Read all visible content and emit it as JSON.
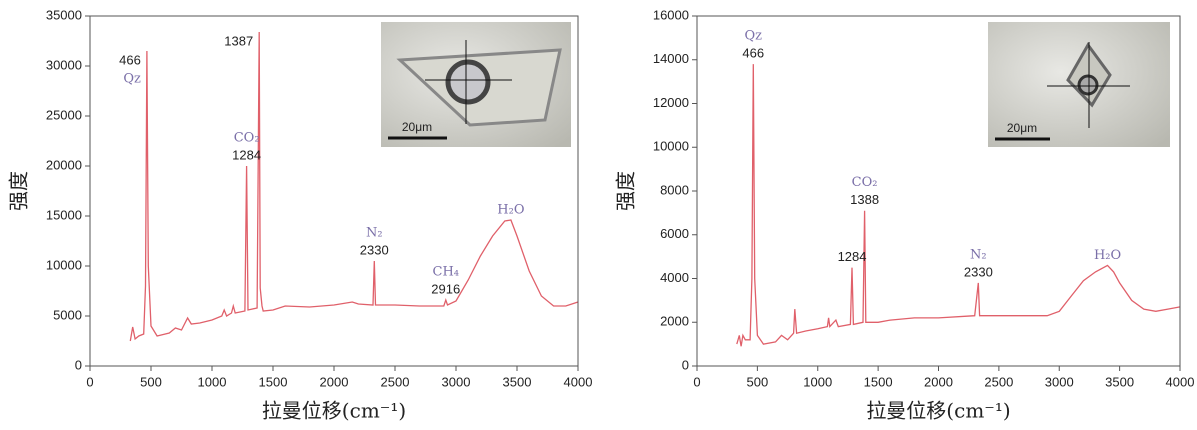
{
  "chart_data": [
    {
      "type": "line",
      "x_label": "拉曼位移(cm⁻¹)",
      "y_label": "强度",
      "inset_label": "20μm",
      "xlim": [
        0,
        4000
      ],
      "xticks": [
        0,
        500,
        1000,
        1500,
        2000,
        2500,
        3000,
        3500,
        4000
      ],
      "ylim": [
        0,
        35000
      ],
      "yticks": [
        0,
        5000,
        10000,
        15000,
        20000,
        25000,
        30000,
        35000
      ],
      "series": [
        {
          "color": "#e0606a",
          "x": [
            330,
            350,
            370,
            400,
            440,
            455,
            466,
            478,
            500,
            550,
            650,
            700,
            750,
            800,
            830,
            900,
            1000,
            1080,
            1100,
            1120,
            1160,
            1175,
            1190,
            1270,
            1284,
            1295,
            1370,
            1387,
            1395,
            1410,
            1420,
            1500,
            1600,
            1800,
            2000,
            2150,
            2200,
            2320,
            2330,
            2340,
            2500,
            2700,
            2900,
            2916,
            2930,
            3000,
            3100,
            3200,
            3300,
            3400,
            3450,
            3500,
            3600,
            3700,
            3800,
            3900,
            4000
          ],
          "values": [
            2500,
            3900,
            2700,
            3000,
            3200,
            8000,
            31500,
            10000,
            4000,
            3000,
            3300,
            3800,
            3600,
            4800,
            4200,
            4300,
            4600,
            5000,
            5600,
            5000,
            5300,
            6000,
            5300,
            5500,
            20000,
            5600,
            5800,
            33400,
            7800,
            6000,
            5500,
            5600,
            6000,
            5900,
            6100,
            6400,
            6200,
            6100,
            10500,
            6100,
            6100,
            6000,
            6000,
            6600,
            6100,
            6500,
            8600,
            11000,
            13000,
            14500,
            14600,
            13000,
            9500,
            7000,
            6000,
            6000,
            6400
          ]
        }
      ],
      "annotations": [
        {
          "x": 466,
          "labels": [
            "466",
            "Qz"
          ]
        },
        {
          "x": 1284,
          "labels": [
            "1284",
            "CO₂"
          ]
        },
        {
          "x": 1387,
          "labels": [
            "1387"
          ]
        },
        {
          "x": 2330,
          "labels": [
            "2330",
            "N₂"
          ]
        },
        {
          "x": 2916,
          "labels": [
            "2916",
            "CH₄"
          ]
        },
        {
          "x": 3450,
          "labels": [
            "H₂O"
          ]
        }
      ]
    },
    {
      "type": "line",
      "x_label": "拉曼位移(cm⁻¹)",
      "y_label": "强度",
      "inset_label": "20μm",
      "xlim": [
        0,
        4000
      ],
      "xticks": [
        0,
        500,
        1000,
        1500,
        2000,
        2500,
        3000,
        3500,
        4000
      ],
      "ylim": [
        0,
        16000
      ],
      "yticks": [
        0,
        2000,
        4000,
        6000,
        8000,
        10000,
        12000,
        14000,
        16000
      ],
      "series": [
        {
          "color": "#e0606a",
          "x": [
            330,
            350,
            365,
            380,
            400,
            440,
            455,
            466,
            478,
            500,
            550,
            650,
            700,
            750,
            800,
            810,
            825,
            900,
            1000,
            1080,
            1090,
            1100,
            1150,
            1170,
            1270,
            1284,
            1295,
            1375,
            1388,
            1398,
            1500,
            1600,
            1800,
            2000,
            2300,
            2330,
            2340,
            2600,
            2900,
            3000,
            3100,
            3200,
            3300,
            3400,
            3450,
            3500,
            3600,
            3700,
            3800,
            3900,
            4000
          ],
          "values": [
            1000,
            1400,
            900,
            1400,
            1200,
            1200,
            4000,
            13800,
            4000,
            1400,
            1000,
            1100,
            1400,
            1200,
            1500,
            2600,
            1500,
            1600,
            1700,
            1800,
            2200,
            1800,
            2100,
            1800,
            1900,
            4500,
            1900,
            2000,
            7100,
            2000,
            2000,
            2100,
            2200,
            2200,
            2300,
            3800,
            2300,
            2300,
            2300,
            2500,
            3200,
            3900,
            4300,
            4600,
            4300,
            3800,
            3000,
            2600,
            2500,
            2600,
            2700
          ]
        }
      ],
      "annotations": [
        {
          "x": 466,
          "labels": [
            "466",
            "Qz"
          ]
        },
        {
          "x": 1284,
          "labels": [
            "1284"
          ]
        },
        {
          "x": 1388,
          "labels": [
            "1388",
            "CO₂"
          ]
        },
        {
          "x": 2330,
          "labels": [
            "2330",
            "N₂"
          ]
        },
        {
          "x": 3400,
          "labels": [
            "H₂O"
          ]
        }
      ]
    }
  ]
}
